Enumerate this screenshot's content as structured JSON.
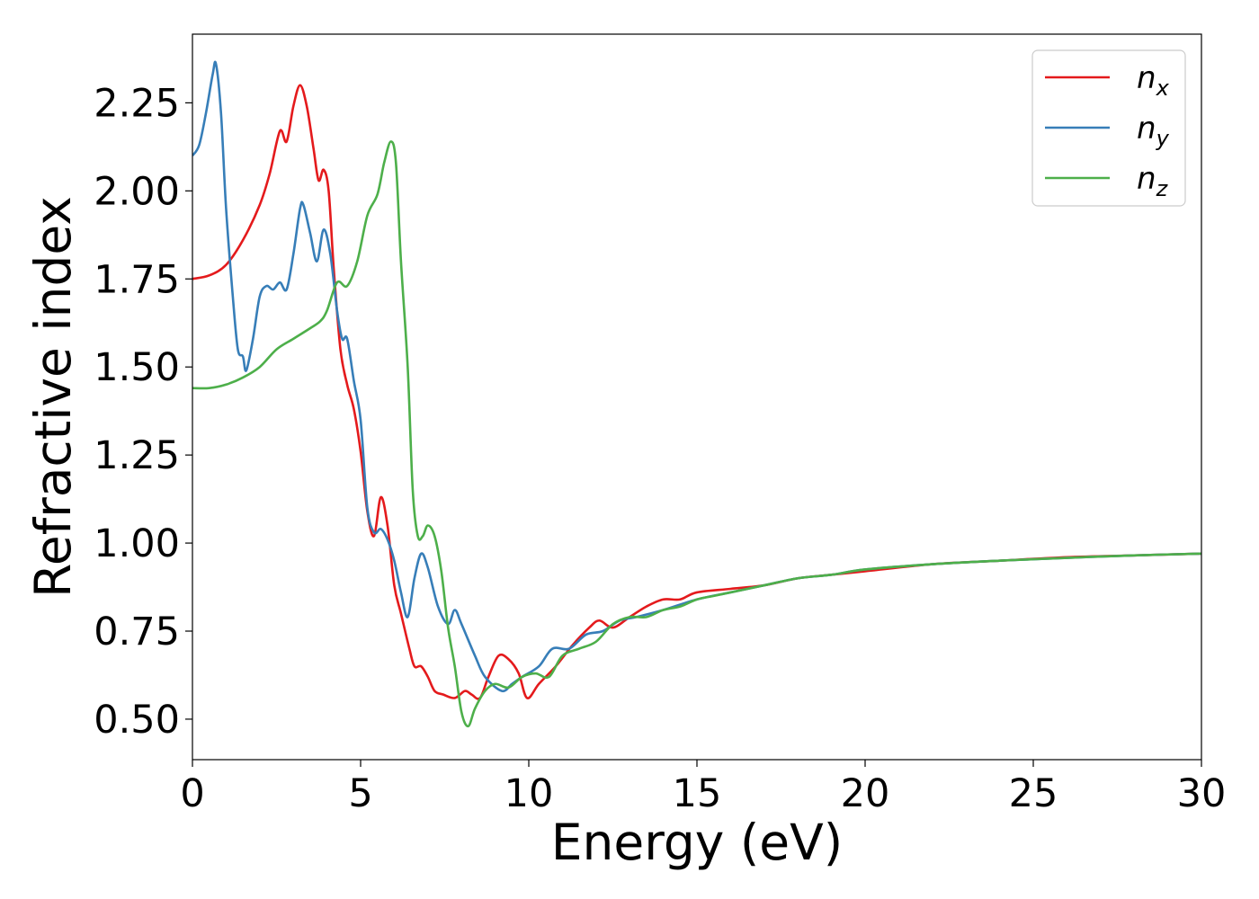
{
  "chart_data": {
    "type": "line",
    "title": "",
    "xlabel": "Energy (eV)",
    "ylabel": "Refractive index",
    "xlim": [
      0,
      30
    ],
    "ylim": [
      0.385,
      2.445
    ],
    "xticks": [
      0,
      5,
      10,
      15,
      20,
      25,
      30
    ],
    "xtick_labels": [
      "0",
      "5",
      "10",
      "15",
      "20",
      "25",
      "30"
    ],
    "yticks": [
      0.5,
      0.75,
      1.0,
      1.25,
      1.5,
      1.75,
      2.0,
      2.25
    ],
    "ytick_labels": [
      "0.50",
      "0.75",
      "1.00",
      "1.25",
      "1.50",
      "1.75",
      "2.00",
      "2.25"
    ],
    "grid": false,
    "legend_position": "top-right",
    "series": [
      {
        "name": "n_x",
        "label_base": "n",
        "label_sub": "x",
        "color": "#e41a1c",
        "points": [
          [
            0,
            1.75
          ],
          [
            0.5,
            1.76
          ],
          [
            1.0,
            1.79
          ],
          [
            1.5,
            1.86
          ],
          [
            2.0,
            1.96
          ],
          [
            2.3,
            2.05
          ],
          [
            2.6,
            2.17
          ],
          [
            2.8,
            2.14
          ],
          [
            3.0,
            2.24
          ],
          [
            3.2,
            2.3
          ],
          [
            3.4,
            2.24
          ],
          [
            3.6,
            2.12
          ],
          [
            3.75,
            2.03
          ],
          [
            3.9,
            2.06
          ],
          [
            4.05,
            2.0
          ],
          [
            4.2,
            1.78
          ],
          [
            4.4,
            1.55
          ],
          [
            4.6,
            1.45
          ],
          [
            4.8,
            1.38
          ],
          [
            5.0,
            1.26
          ],
          [
            5.2,
            1.09
          ],
          [
            5.4,
            1.02
          ],
          [
            5.6,
            1.13
          ],
          [
            5.8,
            1.05
          ],
          [
            6.0,
            0.88
          ],
          [
            6.2,
            0.8
          ],
          [
            6.45,
            0.7
          ],
          [
            6.6,
            0.65
          ],
          [
            6.8,
            0.65
          ],
          [
            7.0,
            0.62
          ],
          [
            7.2,
            0.58
          ],
          [
            7.45,
            0.57
          ],
          [
            7.8,
            0.56
          ],
          [
            8.1,
            0.58
          ],
          [
            8.3,
            0.57
          ],
          [
            8.55,
            0.56
          ],
          [
            8.8,
            0.62
          ],
          [
            9.1,
            0.68
          ],
          [
            9.4,
            0.67
          ],
          [
            9.7,
            0.63
          ],
          [
            9.95,
            0.56
          ],
          [
            10.3,
            0.6
          ],
          [
            10.8,
            0.65
          ],
          [
            11.3,
            0.71
          ],
          [
            11.8,
            0.76
          ],
          [
            12.1,
            0.78
          ],
          [
            12.5,
            0.76
          ],
          [
            13.0,
            0.79
          ],
          [
            13.5,
            0.82
          ],
          [
            14.0,
            0.84
          ],
          [
            14.5,
            0.84
          ],
          [
            15.0,
            0.86
          ],
          [
            16.0,
            0.87
          ],
          [
            17.0,
            0.88
          ],
          [
            18.0,
            0.9
          ],
          [
            19.0,
            0.91
          ],
          [
            20.0,
            0.92
          ],
          [
            22.0,
            0.94
          ],
          [
            24.0,
            0.95
          ],
          [
            26.0,
            0.96
          ],
          [
            28.0,
            0.965
          ],
          [
            30.0,
            0.97
          ]
        ]
      },
      {
        "name": "n_y",
        "label_base": "n",
        "label_sub": "y",
        "color": "#377eb8",
        "points": [
          [
            0,
            2.1
          ],
          [
            0.2,
            2.13
          ],
          [
            0.4,
            2.22
          ],
          [
            0.6,
            2.33
          ],
          [
            0.7,
            2.36
          ],
          [
            0.85,
            2.22
          ],
          [
            1.0,
            1.95
          ],
          [
            1.2,
            1.7
          ],
          [
            1.35,
            1.55
          ],
          [
            1.5,
            1.53
          ],
          [
            1.6,
            1.49
          ],
          [
            1.8,
            1.58
          ],
          [
            2.0,
            1.7
          ],
          [
            2.2,
            1.73
          ],
          [
            2.4,
            1.72
          ],
          [
            2.6,
            1.74
          ],
          [
            2.8,
            1.72
          ],
          [
            3.0,
            1.82
          ],
          [
            3.2,
            1.95
          ],
          [
            3.3,
            1.96
          ],
          [
            3.5,
            1.88
          ],
          [
            3.7,
            1.8
          ],
          [
            3.9,
            1.89
          ],
          [
            4.1,
            1.82
          ],
          [
            4.3,
            1.66
          ],
          [
            4.45,
            1.58
          ],
          [
            4.6,
            1.58
          ],
          [
            4.8,
            1.46
          ],
          [
            5.0,
            1.35
          ],
          [
            5.2,
            1.1
          ],
          [
            5.4,
            1.03
          ],
          [
            5.6,
            1.04
          ],
          [
            5.8,
            1.01
          ],
          [
            6.0,
            0.95
          ],
          [
            6.2,
            0.86
          ],
          [
            6.4,
            0.79
          ],
          [
            6.6,
            0.9
          ],
          [
            6.8,
            0.97
          ],
          [
            7.0,
            0.93
          ],
          [
            7.3,
            0.82
          ],
          [
            7.6,
            0.77
          ],
          [
            7.8,
            0.81
          ],
          [
            8.0,
            0.77
          ],
          [
            8.4,
            0.68
          ],
          [
            8.7,
            0.62
          ],
          [
            9.2,
            0.58
          ],
          [
            9.5,
            0.6
          ],
          [
            9.8,
            0.62
          ],
          [
            10.3,
            0.65
          ],
          [
            10.7,
            0.7
          ],
          [
            11.2,
            0.7
          ],
          [
            11.7,
            0.74
          ],
          [
            12.2,
            0.75
          ],
          [
            12.7,
            0.78
          ],
          [
            13.2,
            0.79
          ],
          [
            14.0,
            0.81
          ],
          [
            15.0,
            0.84
          ],
          [
            16.0,
            0.86
          ],
          [
            17.0,
            0.88
          ],
          [
            18.0,
            0.9
          ],
          [
            19.0,
            0.91
          ],
          [
            20.0,
            0.925
          ],
          [
            22.0,
            0.94
          ],
          [
            24.0,
            0.95
          ],
          [
            26.0,
            0.958
          ],
          [
            28.0,
            0.965
          ],
          [
            30.0,
            0.97
          ]
        ]
      },
      {
        "name": "n_z",
        "label_base": "n",
        "label_sub": "z",
        "color": "#4daf4a",
        "points": [
          [
            0,
            1.44
          ],
          [
            0.5,
            1.44
          ],
          [
            1.0,
            1.45
          ],
          [
            1.5,
            1.47
          ],
          [
            2.0,
            1.5
          ],
          [
            2.5,
            1.55
          ],
          [
            3.0,
            1.58
          ],
          [
            3.5,
            1.61
          ],
          [
            3.8,
            1.63
          ],
          [
            4.0,
            1.66
          ],
          [
            4.3,
            1.74
          ],
          [
            4.6,
            1.73
          ],
          [
            4.9,
            1.8
          ],
          [
            5.2,
            1.93
          ],
          [
            5.5,
            1.99
          ],
          [
            5.7,
            2.08
          ],
          [
            5.9,
            2.14
          ],
          [
            6.05,
            2.08
          ],
          [
            6.2,
            1.8
          ],
          [
            6.4,
            1.5
          ],
          [
            6.55,
            1.15
          ],
          [
            6.7,
            1.02
          ],
          [
            6.85,
            1.02
          ],
          [
            7.0,
            1.05
          ],
          [
            7.2,
            1.02
          ],
          [
            7.4,
            0.92
          ],
          [
            7.6,
            0.76
          ],
          [
            7.8,
            0.65
          ],
          [
            8.0,
            0.52
          ],
          [
            8.2,
            0.48
          ],
          [
            8.4,
            0.53
          ],
          [
            8.7,
            0.58
          ],
          [
            9.0,
            0.6
          ],
          [
            9.4,
            0.59
          ],
          [
            9.8,
            0.62
          ],
          [
            10.2,
            0.63
          ],
          [
            10.6,
            0.62
          ],
          [
            11.0,
            0.68
          ],
          [
            11.5,
            0.7
          ],
          [
            12.0,
            0.72
          ],
          [
            12.5,
            0.77
          ],
          [
            13.0,
            0.79
          ],
          [
            13.5,
            0.79
          ],
          [
            14.0,
            0.81
          ],
          [
            14.5,
            0.82
          ],
          [
            15.0,
            0.84
          ],
          [
            15.5,
            0.85
          ],
          [
            16.0,
            0.86
          ],
          [
            17.0,
            0.88
          ],
          [
            18.0,
            0.9
          ],
          [
            19.0,
            0.91
          ],
          [
            20.0,
            0.925
          ],
          [
            22.0,
            0.94
          ],
          [
            24.0,
            0.95
          ],
          [
            26.0,
            0.958
          ],
          [
            28.0,
            0.965
          ],
          [
            30.0,
            0.97
          ]
        ]
      }
    ]
  }
}
